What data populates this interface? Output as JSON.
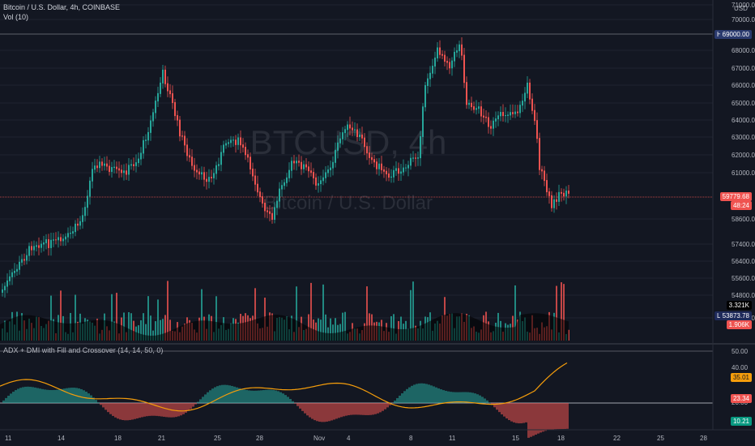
{
  "header": {
    "symbol_line": "Bitcoin / U.S. Dollar, 4h, COINBASE",
    "volume_label": "Vol (10)",
    "currency": "USD"
  },
  "watermark": {
    "symbol": "BTCUSD, 4h",
    "name": "Bitcoin / U.S. Dollar"
  },
  "price_axis": {
    "ticks": [
      "71000.00",
      "70000.00",
      "68000.00",
      "67000.00",
      "66000.00",
      "65000.00",
      "64000.00",
      "63000.00",
      "62000.00",
      "61000.00",
      "58600.00",
      "57400.00",
      "56400.00",
      "55600.00",
      "54800.00",
      "53800.00"
    ]
  },
  "markers": {
    "high_label": "High",
    "high_value": "69000.00",
    "last_price": "59779.68",
    "last_time": "48:24",
    "vol_value": "3.321K",
    "low_label": "Low",
    "low_value": "53873.78",
    "vol_sma": "1.906K"
  },
  "indicator": {
    "title": "ADX + DMI with Fill and Crossover (14, 14, 50, 0)",
    "ticks": [
      "50.00",
      "40.00",
      "20.00"
    ],
    "adx_value": "35.01",
    "di_value": "23.34",
    "threshold_value": "10.21"
  },
  "time_axis": {
    "labels": [
      "11",
      "14",
      "18",
      "21",
      "25",
      "28",
      "Nov",
      "4",
      "8",
      "11",
      "15",
      "18",
      "22",
      "25",
      "28"
    ]
  },
  "colors": {
    "background": "#131722",
    "up": "#26a69a",
    "down": "#ef5350",
    "adx": "#f59d0b",
    "high_tag": "#2a3a6e",
    "low_tag": "#1e2a5a",
    "last_price_tag": "#ef5350",
    "vol_tag": "#000000",
    "di_tag": "#ef5350",
    "threshold_tag": "#089981"
  }
}
